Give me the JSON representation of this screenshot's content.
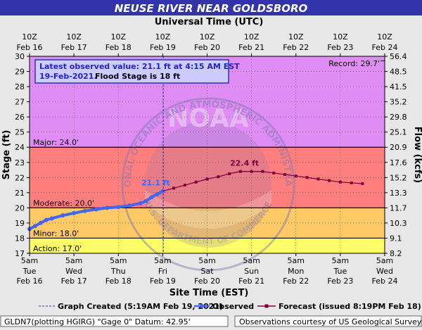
{
  "chart_data": {
    "type": "line",
    "title": "NEUSE RIVER NEAR GOLDSBORO",
    "top_axis_label": "Universal Time (UTC)",
    "bottom_axis_label": "Site Time (EST)",
    "ylabel": "Stage (ft)",
    "y2label": "Flow (kcfs)",
    "ylim": [
      17,
      30
    ],
    "xlim_hours_from_start": [
      0,
      192
    ],
    "top_ticks": [
      {
        "t": "10Z",
        "d": "Feb 16"
      },
      {
        "t": "10Z",
        "d": "Feb 17"
      },
      {
        "t": "10Z",
        "d": "Feb 18"
      },
      {
        "t": "10Z",
        "d": "Feb 19"
      },
      {
        "t": "10Z",
        "d": "Feb 20"
      },
      {
        "t": "10Z",
        "d": "Feb 21"
      },
      {
        "t": "10Z",
        "d": "Feb 22"
      },
      {
        "t": "10Z",
        "d": "Feb 23"
      },
      {
        "t": "10Z",
        "d": "Feb 24"
      }
    ],
    "bottom_ticks": [
      {
        "t": "5am",
        "w": "Tue",
        "d": "Feb 16"
      },
      {
        "t": "5am",
        "w": "Wed",
        "d": "Feb 17"
      },
      {
        "t": "5am",
        "w": "Thu",
        "d": "Feb 18"
      },
      {
        "t": "5am",
        "w": "Fri",
        "d": "Feb 19"
      },
      {
        "t": "5am",
        "w": "Sat",
        "d": "Feb 20"
      },
      {
        "t": "5am",
        "w": "Sun",
        "d": "Feb 21"
      },
      {
        "t": "5am",
        "w": "Mon",
        "d": "Feb 22"
      },
      {
        "t": "5am",
        "w": "Tue",
        "d": "Feb 23"
      },
      {
        "t": "5am",
        "w": "Wed",
        "d": "Feb 24"
      }
    ],
    "y_ticks": [
      17,
      18,
      19,
      20,
      21,
      22,
      23,
      24,
      25,
      26,
      27,
      28,
      29,
      30
    ],
    "flow_ticks": [
      {
        "stage": 17,
        "label": "8.2"
      },
      {
        "stage": 18,
        "label": "9.1"
      },
      {
        "stage": 19,
        "label": "10.3"
      },
      {
        "stage": 20,
        "label": "11.7"
      },
      {
        "stage": 21,
        "label": "13.3"
      },
      {
        "stage": 22,
        "label": "15.2"
      },
      {
        "stage": 23,
        "label": "17.6"
      },
      {
        "stage": 24,
        "label": "20.9"
      },
      {
        "stage": 25,
        "label": "25.1"
      },
      {
        "stage": 26,
        "label": "29.8"
      },
      {
        "stage": 27,
        "label": "35.2"
      },
      {
        "stage": 28,
        "label": "41.5"
      },
      {
        "stage": 29,
        "label": "48.5"
      },
      {
        "stage": 30,
        "label": "56.4"
      }
    ],
    "bands": [
      {
        "name": "Action",
        "from": 17,
        "to": 18,
        "color": "#ffff66"
      },
      {
        "name": "Minor",
        "from": 18,
        "to": 20,
        "color": "#ffc966"
      },
      {
        "name": "Moderate",
        "from": 20,
        "to": 24,
        "color": "#ff7f7f"
      },
      {
        "name": "Major",
        "from": 24,
        "to": 30,
        "color": "#e08cf5"
      }
    ],
    "band_labels": [
      {
        "text": "Major: 24.0'",
        "stage": 24
      },
      {
        "text": "Moderate: 20.0'",
        "stage": 20
      },
      {
        "text": "Minor: 18.0'",
        "stage": 18
      },
      {
        "text": "Action: 17.0'",
        "stage": 17
      }
    ],
    "record_label": "Record: 29.7'",
    "record_stage": 29.7,
    "graph_created_hour": 72.3,
    "observed": {
      "name": "Observed",
      "color": "#4466ee",
      "x": [
        0,
        3,
        6,
        9,
        12,
        18,
        24,
        30,
        36,
        42,
        48,
        54,
        60,
        63,
        66,
        69,
        72
      ],
      "y": [
        18.6,
        18.8,
        19.0,
        19.2,
        19.3,
        19.5,
        19.65,
        19.8,
        19.9,
        20.0,
        20.05,
        20.15,
        20.3,
        20.45,
        20.7,
        20.9,
        21.1
      ]
    },
    "forecast": {
      "name": "Forecast (issued 8:19PM Feb 18)",
      "color": "#800040",
      "x": [
        72,
        78,
        84,
        90,
        96,
        102,
        108,
        114,
        120,
        126,
        132,
        138,
        144,
        150,
        156,
        162,
        168,
        174,
        180
      ],
      "y": [
        21.1,
        21.3,
        21.5,
        21.7,
        21.9,
        22.05,
        22.25,
        22.4,
        22.4,
        22.4,
        22.3,
        22.2,
        22.1,
        22.0,
        21.9,
        21.8,
        21.7,
        21.65,
        21.6
      ]
    },
    "annotations": [
      {
        "text": "21.1 ft",
        "x": 72,
        "y": 21.1,
        "color": "#4466ee"
      },
      {
        "text": "22.4 ft",
        "x": 120,
        "y": 22.4,
        "color": "#800040"
      }
    ],
    "info_box": {
      "line1": "Latest observed value: 21.1 ft at 4:15 AM EST",
      "line2a": "19-Feb-2021.",
      "line2b": "Flood Stage is 18 ft"
    },
    "legend": {
      "graph_created": "Graph Created (5:19AM Feb 19, 2021)",
      "observed": "Observed",
      "forecast": "Forecast (issued 8:19PM Feb 18)"
    },
    "footer_left": "GLDN7(plotting HGIRG) \"Gage 0\" Datum: 42.95'",
    "footer_right": "Observations courtesy of US Geological Survey",
    "watermark_text": "NATIONAL OCEANIC AND ATMOSPHERIC ADMINISTRATION",
    "watermark_bottom": "U.S. DEPARTMENT OF COMMERCE",
    "watermark_logo": "NOAA"
  }
}
